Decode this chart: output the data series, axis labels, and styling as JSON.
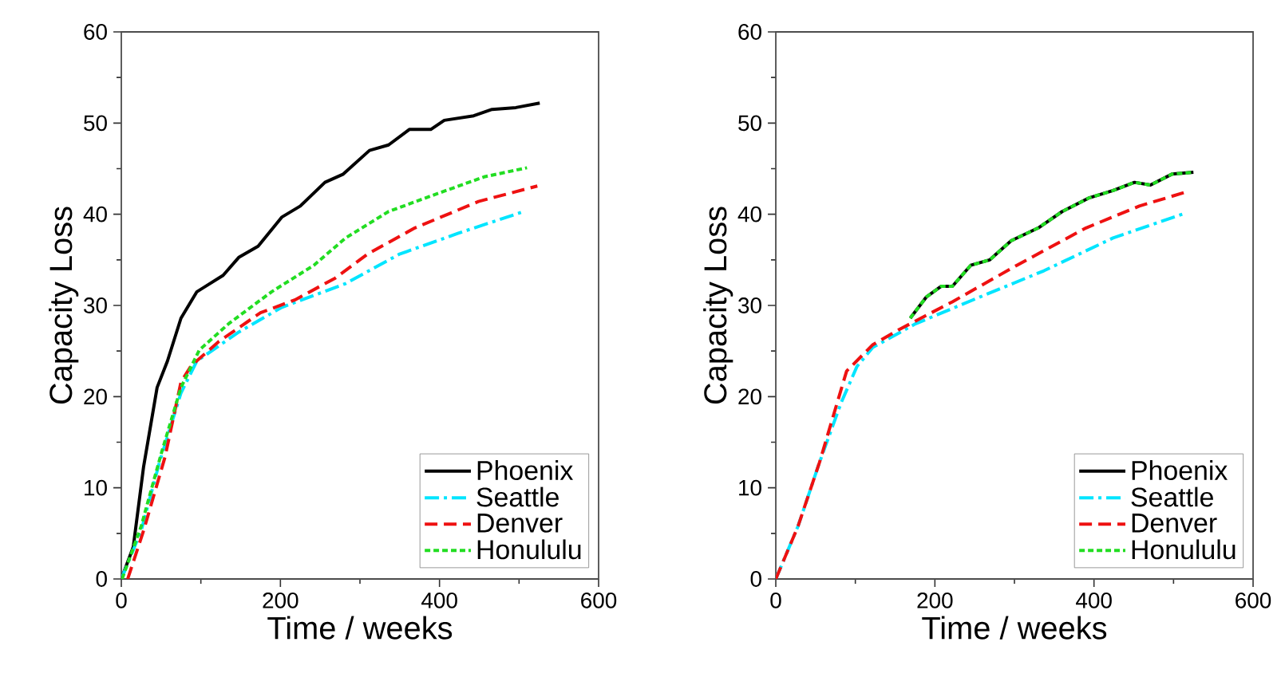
{
  "chart_data": [
    {
      "type": "line",
      "xlabel": "Time / weeks",
      "ylabel": "Capacity Loss",
      "xlim": [
        0,
        600
      ],
      "ylim": [
        0,
        60
      ],
      "xticks": [
        0,
        200,
        400,
        600
      ],
      "yticks": [
        0,
        10,
        20,
        30,
        40,
        50,
        60
      ],
      "legend": "bottom right",
      "marker": "none",
      "series": [
        {
          "name": "Phoenix",
          "color": "#000000",
          "line_style": "solid",
          "x": [
            0,
            15,
            28,
            45,
            58,
            75,
            95,
            128,
            148,
            172,
            202,
            225,
            256,
            279,
            312,
            336,
            362,
            389,
            406,
            443,
            466,
            496,
            526
          ],
          "values": [
            0,
            3.5,
            12.3,
            21,
            23.9,
            28.6,
            31.5,
            33.3,
            35.3,
            36.5,
            39.7,
            40.9,
            43.5,
            44.4,
            47,
            47.6,
            49.3,
            49.3,
            50.3,
            50.8,
            51.5,
            51.7,
            52.2
          ]
        },
        {
          "name": "Seattle",
          "color": "#00e5ff",
          "line_style": "dashdot",
          "x": [
            0,
            25,
            48,
            75,
            95,
            148,
            202,
            282,
            349,
            423,
            506
          ],
          "values": [
            0,
            5.3,
            12.8,
            20.4,
            23.9,
            27.1,
            29.8,
            32.4,
            35.6,
            37.9,
            40.3
          ]
        },
        {
          "name": "Denver",
          "color": "#ee1111",
          "line_style": "dashed",
          "x": [
            8,
            28,
            55,
            75,
            88,
            122,
            175,
            218,
            269,
            309,
            369,
            449,
            523
          ],
          "values": [
            0,
            5.3,
            13.4,
            21.6,
            23.4,
            26,
            29.2,
            30.6,
            33,
            35.6,
            38.5,
            41.4,
            43.1
          ]
        },
        {
          "name": "Honululu",
          "color": "#22dd22",
          "line_style": "dotted",
          "x": [
            1,
            25,
            51,
            75,
            98,
            135,
            189,
            242,
            282,
            336,
            389,
            456,
            510
          ],
          "values": [
            0,
            5.8,
            14,
            21,
            25.1,
            28,
            31.5,
            34.4,
            37.4,
            40.3,
            42,
            44.1,
            45.1
          ]
        }
      ]
    },
    {
      "type": "line",
      "xlabel": "Time / weeks",
      "ylabel": "Capacity Loss",
      "xlim": [
        0,
        600
      ],
      "ylim": [
        0,
        60
      ],
      "xticks": [
        0,
        200,
        400,
        600
      ],
      "yticks": [
        0,
        10,
        20,
        30,
        40,
        50,
        60
      ],
      "legend": "bottom right",
      "marker": "none",
      "series": [
        {
          "name": "Phoenix",
          "color": "#000000",
          "line_style": "solid",
          "x": [
            169,
            189,
            208,
            222,
            245,
            269,
            296,
            330,
            360,
            394,
            424,
            451,
            471,
            498,
            525
          ],
          "values": [
            28.6,
            30.9,
            32.1,
            32.1,
            34.4,
            35,
            37.1,
            38.5,
            40.3,
            41.8,
            42.6,
            43.5,
            43.2,
            44.4,
            44.6
          ]
        },
        {
          "name": "Seattle",
          "color": "#00e5ff",
          "line_style": "dashdot",
          "x": [
            0,
            28,
            55,
            82,
            102,
            122,
            176,
            256,
            337,
            424,
            511
          ],
          "values": [
            0,
            5.8,
            12.8,
            19.3,
            23.3,
            25.4,
            28,
            30.9,
            33.8,
            37.4,
            40
          ]
        },
        {
          "name": "Denver",
          "color": "#ee1111",
          "line_style": "dashed",
          "x": [
            0,
            28,
            55,
            89,
            122,
            156,
            222,
            303,
            390,
            457,
            518
          ],
          "values": [
            0,
            5.8,
            12.8,
            22.8,
            25.7,
            27.4,
            30.4,
            34.4,
            38.5,
            40.9,
            42.5
          ]
        },
        {
          "name": "Honululu",
          "color": "#22dd22",
          "line_style": "dotted",
          "x": [
            169,
            189,
            208,
            222,
            245,
            269,
            296,
            330,
            360,
            394,
            424,
            451,
            471,
            498,
            525
          ],
          "values": [
            28.6,
            30.9,
            32.1,
            32.1,
            34.4,
            35,
            37.1,
            38.5,
            40.3,
            41.8,
            42.6,
            43.5,
            43.2,
            44.4,
            44.6
          ]
        }
      ]
    }
  ]
}
